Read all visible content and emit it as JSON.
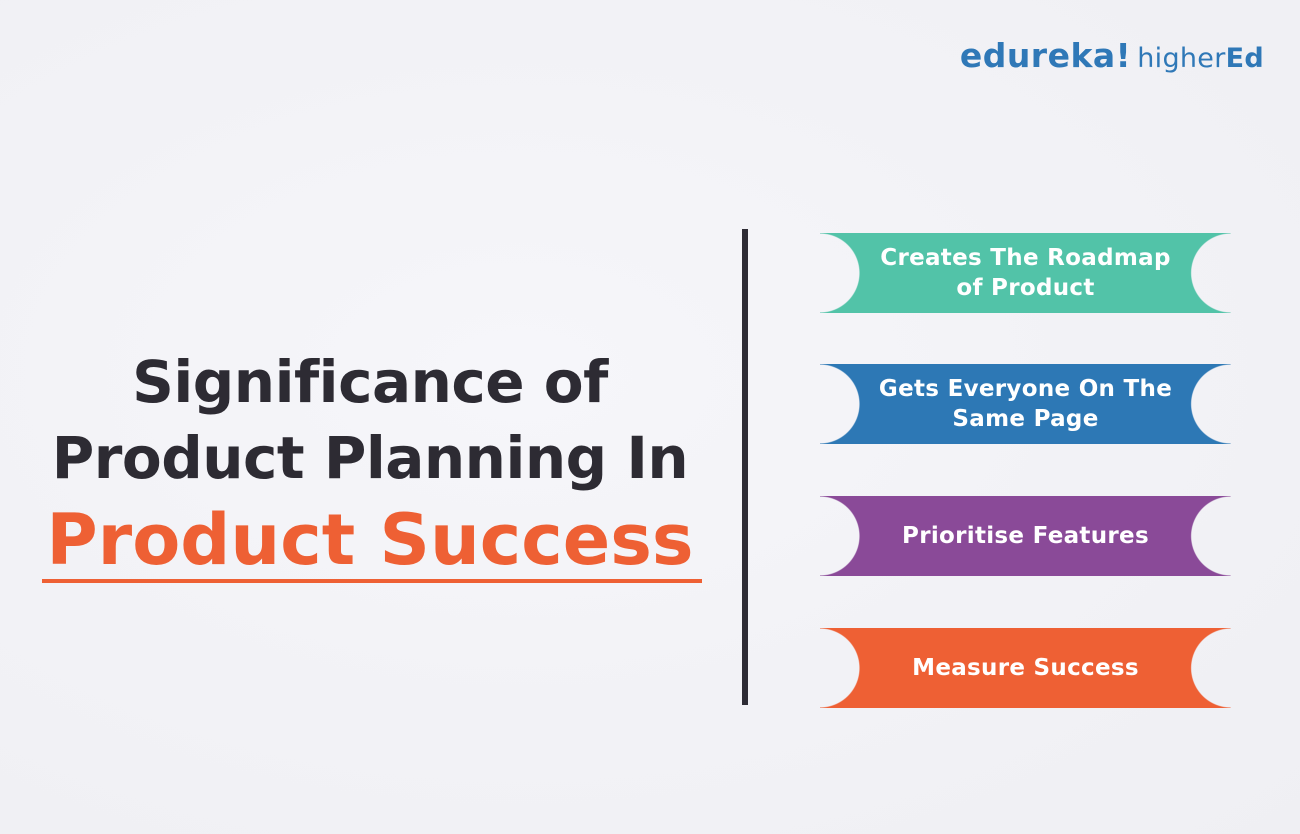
{
  "logo": {
    "brand": "edureka!",
    "sub_light": "higher",
    "sub_bold": "Ed"
  },
  "heading": {
    "line1": "Significance of",
    "line2": "Product Planning In",
    "accent": "Product Success"
  },
  "banners": [
    {
      "label": "Creates The Roadmap of Product",
      "color": "#52c3a8"
    },
    {
      "label": "Gets Everyone On The Same Page",
      "color": "#2d78b5"
    },
    {
      "label": "Prioritise Features",
      "color": "#8a4a98"
    },
    {
      "label": "Measure Success",
      "color": "#ee6034"
    }
  ],
  "colors": {
    "heading_text": "#2d2b33",
    "accent": "#ee6034",
    "logo": "#2f78b7",
    "divider": "#2e2c35"
  }
}
